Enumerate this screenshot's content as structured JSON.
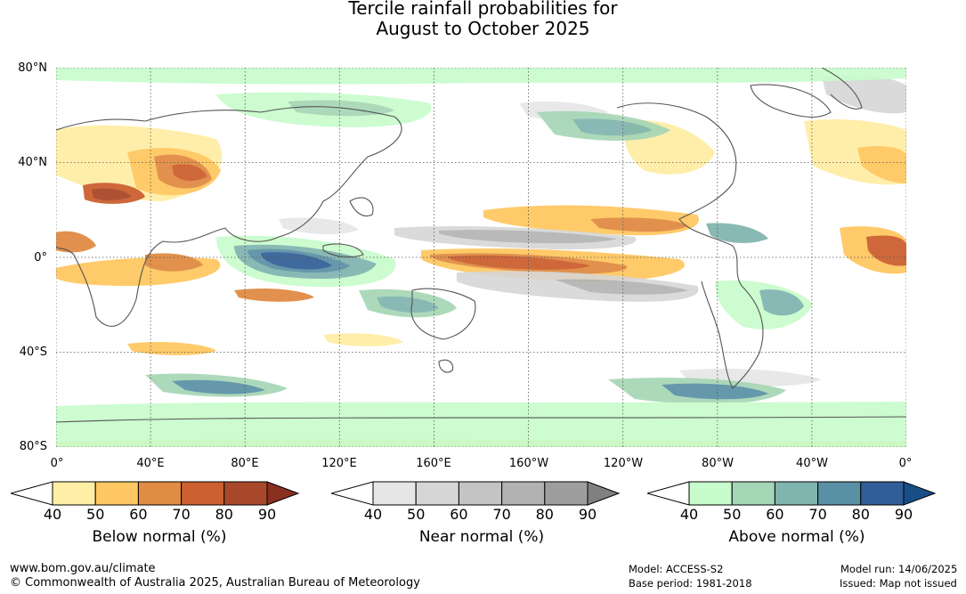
{
  "title": {
    "line1": "Tercile rainfall probabilities for",
    "line2": "August to October 2025"
  },
  "map": {
    "lat_labels": [
      "80°N",
      "40°N",
      "0°",
      "40°S",
      "80°S"
    ],
    "lon_labels": [
      "0°",
      "40°E",
      "80°E",
      "120°E",
      "160°E",
      "160°W",
      "120°W",
      "80°W",
      "40°W",
      "0°"
    ],
    "gridlines": "dotted",
    "ocean_color": "#ffffff",
    "coast_color": "#555555"
  },
  "colorbars": [
    {
      "name": "below-normal",
      "label": "Below normal (%)",
      "ticks": [
        "40",
        "50",
        "60",
        "70",
        "80",
        "90"
      ],
      "colors": [
        "#ffffff",
        "#ffeea5",
        "#ffc862",
        "#e08c44",
        "#cc6030",
        "#a8482a",
        "#8a3020"
      ]
    },
    {
      "name": "near-normal",
      "label": "Near normal (%)",
      "ticks": [
        "40",
        "50",
        "60",
        "70",
        "80",
        "90"
      ],
      "colors": [
        "#ffffff",
        "#e6e6e6",
        "#d6d6d6",
        "#c4c4c4",
        "#b2b2b2",
        "#9e9e9e",
        "#808080"
      ]
    },
    {
      "name": "above-normal",
      "label": "Above normal (%)",
      "ticks": [
        "40",
        "50",
        "60",
        "70",
        "80",
        "90"
      ],
      "colors": [
        "#ffffff",
        "#c8fccc",
        "#a5d6b5",
        "#80b4ae",
        "#5a90a4",
        "#305e96",
        "#184e88"
      ]
    }
  ],
  "footer": {
    "website": "www.bom.gov.au/climate",
    "copyright": "© Commonwealth of Australia 2025, Australian Bureau of Meteorology",
    "model": "Model: ACCESS-S2",
    "base_period": "Base period: 1981-2018",
    "model_run": "Model run: 14/06/2025",
    "issued": "Issued: Map not issued"
  }
}
